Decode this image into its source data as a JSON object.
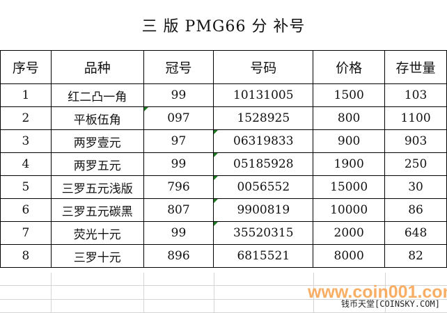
{
  "title": "三 版 PMG66 分 补号",
  "columns": [
    "序号",
    "品种",
    "冠号",
    "号码",
    "价格",
    "存世量"
  ],
  "rows": [
    [
      "1",
      "红二凸一角",
      "99",
      "10131005",
      "1500",
      "103"
    ],
    [
      "2",
      "平板伍角",
      "097",
      "1528925",
      "800",
      "1100"
    ],
    [
      "3",
      "两罗壹元",
      "97",
      "06319833",
      "900",
      "903"
    ],
    [
      "4",
      "两罗五元",
      "99",
      "05185928",
      "1900",
      "250"
    ],
    [
      "5",
      "三罗五元浅版",
      "796",
      "0056552",
      "15000",
      "30"
    ],
    [
      "6",
      "三罗五元碳黑",
      "807",
      "9900819",
      "10000",
      "86"
    ],
    [
      "7",
      "荧光十元",
      "99",
      "35520315",
      "2000",
      "648"
    ],
    [
      "8",
      "三罗十元",
      "896",
      "6815521",
      "8000",
      "82"
    ]
  ],
  "watermark": {
    "site": "www.coin001.com",
    "label": "钱币天堂[COINSKY.COM]"
  },
  "colors": {
    "watermark": "#f7a04a",
    "error_indicator": "#1e7a1e"
  }
}
